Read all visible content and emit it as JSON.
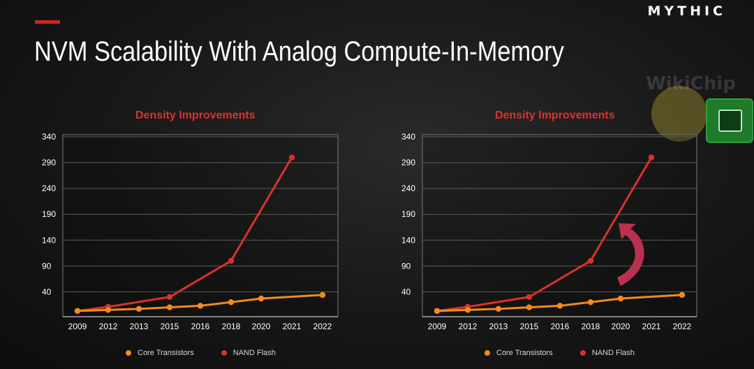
{
  "brand": "MYTHIC",
  "title": "NVM Scalability With Analog Compute-In-Memory",
  "watermark": "WikiChip",
  "colors": {
    "accent": "#d6231e",
    "core": "#f28c1a",
    "nand": "#d8322a",
    "arrow": "#b8324f",
    "title": "#e0302a"
  },
  "chart_data": [
    {
      "type": "line",
      "title": "Density Improvements",
      "categories": [
        "2009",
        "2012",
        "2013",
        "2015",
        "2016",
        "2018",
        "2020",
        "2021",
        "2022"
      ],
      "ytick_labels": [
        "40",
        "90",
        "140",
        "190",
        "240",
        "290",
        "340"
      ],
      "series": [
        {
          "name": "Core Transistors",
          "values": [
            3,
            5,
            7,
            10,
            13,
            20,
            27,
            null,
            34
          ]
        },
        {
          "name": "NAND Flash",
          "values": [
            3,
            11,
            null,
            30,
            null,
            100,
            null,
            300,
            null
          ]
        }
      ]
    },
    {
      "type": "line",
      "title": "Density Improvements",
      "categories": [
        "2009",
        "2012",
        "2013",
        "2015",
        "2016",
        "2018",
        "2020",
        "2021",
        "2022"
      ],
      "ytick_labels": [
        "40",
        "90",
        "140",
        "190",
        "240",
        "290",
        "340"
      ],
      "series": [
        {
          "name": "Core Transistors",
          "values": [
            3,
            5,
            7,
            10,
            13,
            20,
            27,
            null,
            34
          ]
        },
        {
          "name": "NAND Flash",
          "values": [
            3,
            11,
            null,
            30,
            null,
            100,
            null,
            300,
            null
          ]
        }
      ],
      "annotation": "upward-curved-arrow"
    }
  ]
}
